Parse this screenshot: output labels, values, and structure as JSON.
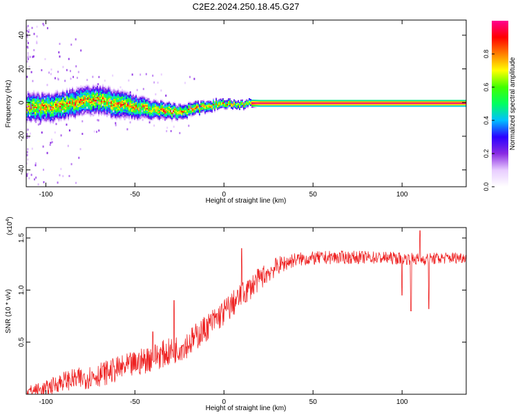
{
  "title": "C2E2.2024.250.18.45.G27",
  "colors": {
    "snr_line": "#ee2222",
    "axes": "#000000",
    "background": "#ffffff"
  },
  "chart_data": [
    {
      "type": "heatmap",
      "xlabel": "Height of straight line (km)",
      "ylabel": "Frequency (Hz)",
      "xlim": [
        -111,
        136
      ],
      "ylim": [
        -50,
        49
      ],
      "x_ticks": [
        -100,
        -50,
        0,
        50,
        100
      ],
      "y_ticks": [
        -40,
        -20,
        0,
        20,
        40
      ],
      "x_tick_labels": [
        "-100",
        "-50",
        "0",
        "50",
        "100"
      ],
      "y_tick_labels": [
        "-40",
        "-20",
        "0",
        "20",
        "40"
      ],
      "grid": false,
      "colormap": "rainbow (white-purple-blue-cyan-green-yellow-red-magenta)",
      "colorbar": {
        "label": "Normalized spectral amplitude",
        "range": [
          0,
          1
        ],
        "ticks": [
          0.0,
          0.2,
          0.4,
          0.6,
          0.8
        ],
        "tick_labels": [
          "0.0",
          "0.2",
          "0.4",
          "0.6",
          "0.8"
        ],
        "stops": [
          "#ffffff",
          "#e8ccff",
          "#8a2be2",
          "#2b00ff",
          "#00c0ff",
          "#00ff60",
          "#40ff00",
          "#ffff00",
          "#ff8000",
          "#ff0000",
          "#ff0090"
        ]
      },
      "ridge_center_freq": {
        "x": [
          -111,
          -100,
          -90,
          -80,
          -70,
          -60,
          -50,
          -40,
          -35,
          -30,
          -25,
          -20,
          -15,
          -10,
          -5,
          0,
          5,
          10,
          15,
          20,
          40,
          60,
          80,
          100,
          120,
          136
        ],
        "y": [
          -2,
          -3,
          -1,
          1,
          2,
          -1,
          -2,
          -4,
          -4,
          -5,
          -5,
          -4,
          -3,
          -2,
          -1,
          0,
          -1,
          -1,
          0,
          0,
          0,
          0,
          0,
          0,
          0,
          0
        ]
      },
      "ridge_halfwidth_hz": {
        "x": [
          -111,
          -60,
          -40,
          -20,
          0,
          20,
          60,
          100,
          136
        ],
        "y": [
          6,
          6,
          4,
          3,
          2,
          1.5,
          1.5,
          1.5,
          1.5
        ]
      }
    },
    {
      "type": "line",
      "xlabel": "Height of straight line (km)",
      "ylabel": "SNR (10 * v/v)",
      "y_scale_note": "(x10",
      "y_scale_exp": "4",
      "xlim": [
        -111,
        136
      ],
      "ylim": [
        0,
        1.6
      ],
      "x_ticks": [
        -100,
        -50,
        0,
        50,
        100
      ],
      "y_ticks": [
        0.5,
        1.0,
        1.5
      ],
      "x_tick_labels": [
        "-100",
        "-50",
        "0",
        "50",
        "100"
      ],
      "y_tick_labels": [
        "0.5",
        "1.0",
        "1.5"
      ],
      "grid": false,
      "series": [
        {
          "color": "#ee2222",
          "envelope": {
            "x": [
              -111,
              -100,
              -90,
              -80,
              -70,
              -60,
              -50,
              -40,
              -30,
              -20,
              -10,
              0,
              10,
              20,
              30,
              40,
              60,
              80,
              100,
              110,
              120,
              136
            ],
            "y": [
              0.03,
              0.06,
              0.14,
              0.16,
              0.2,
              0.25,
              0.3,
              0.37,
              0.42,
              0.5,
              0.65,
              0.8,
              0.96,
              1.12,
              1.24,
              1.3,
              1.32,
              1.32,
              1.31,
              1.3,
              1.31,
              1.32
            ]
          },
          "noise_amplitude": {
            "x": [
              -111,
              -80,
              -40,
              0,
              20,
              40,
              136
            ],
            "y": [
              0.05,
              0.1,
              0.12,
              0.12,
              0.1,
              0.06,
              0.05
            ]
          },
          "notable_points": {
            "x": [
              -40,
              -28,
              10,
              100,
              105,
              110,
              115
            ],
            "y": [
              0.6,
              0.9,
              1.4,
              0.95,
              0.8,
              1.57,
              0.82
            ]
          }
        }
      ]
    }
  ]
}
